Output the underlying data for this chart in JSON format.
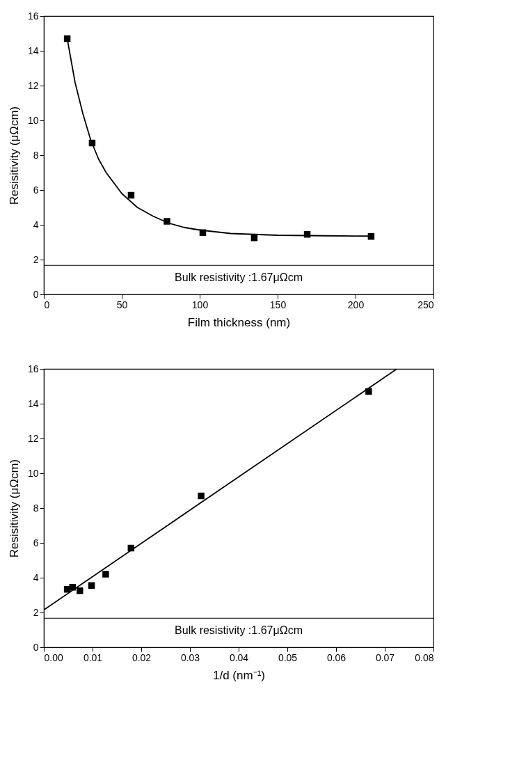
{
  "chart_data": [
    {
      "type": "scatter",
      "xlabel": "Film thickness (nm)",
      "ylabel": "Resisitivity (μΩcm)",
      "xlim": [
        0,
        250
      ],
      "xticks": [
        0,
        50,
        100,
        150,
        200,
        250
      ],
      "ylim": [
        0,
        16
      ],
      "yticks": [
        0,
        2,
        4,
        6,
        8,
        10,
        12,
        14,
        16
      ],
      "grid": false,
      "legend": false,
      "marker": "square",
      "series": [
        {
          "type": "scatter",
          "color": "#000000",
          "x": [
            15,
            31,
            56,
            79,
            102,
            135,
            169,
            210
          ],
          "values": [
            14.7,
            8.7,
            5.7,
            4.2,
            3.55,
            3.25,
            3.45,
            3.33
          ]
        },
        {
          "type": "line",
          "color": "#000000",
          "line_style": "solid",
          "marker": "none",
          "x": [
            15,
            20,
            25,
            30,
            35,
            40,
            50,
            60,
            70,
            80,
            90,
            100,
            120,
            150,
            180,
            210
          ],
          "values": [
            14.7,
            12.2,
            10.4,
            8.9,
            7.8,
            7.0,
            5.8,
            5.0,
            4.5,
            4.1,
            3.85,
            3.7,
            3.5,
            3.4,
            3.37,
            3.35
          ]
        }
      ],
      "ref_lines": [
        {
          "axis": "y",
          "value": 1.67,
          "label": "Bulk resistivity :1.67μΩcm",
          "color": "#000000",
          "line_style": "solid"
        }
      ]
    },
    {
      "type": "scatter",
      "xlabel": "1/d (nm⁻¹)",
      "ylabel": "Resisitivity (μΩcm)",
      "xlim": [
        0,
        0.08
      ],
      "xticks": [
        {
          "value": 0,
          "label": "0.00"
        },
        0.01,
        0.02,
        0.03,
        0.04,
        0.05,
        0.06,
        0.07,
        {
          "value": 0.08,
          "label": "0.08"
        }
      ],
      "ylim": [
        0,
        16
      ],
      "yticks": [
        0,
        2,
        4,
        6,
        8,
        10,
        12,
        14,
        16
      ],
      "grid": false,
      "legend": false,
      "marker": "square",
      "series": [
        {
          "type": "scatter",
          "color": "#000000",
          "x": [
            0.0667,
            0.0323,
            0.0179,
            0.0127,
            0.0098,
            0.0074,
            0.0059,
            0.0048
          ],
          "values": [
            14.7,
            8.7,
            5.7,
            4.2,
            3.55,
            3.25,
            3.45,
            3.33
          ]
        },
        {
          "type": "line",
          "color": "#000000",
          "line_style": "solid",
          "marker": "none",
          "x": [
            0,
            0.0725
          ],
          "values": [
            2.15,
            16
          ]
        }
      ],
      "ref_lines": [
        {
          "axis": "y",
          "value": 1.67,
          "label": "Bulk resistivity :1.67μΩcm",
          "color": "#000000",
          "line_style": "solid"
        }
      ]
    }
  ]
}
